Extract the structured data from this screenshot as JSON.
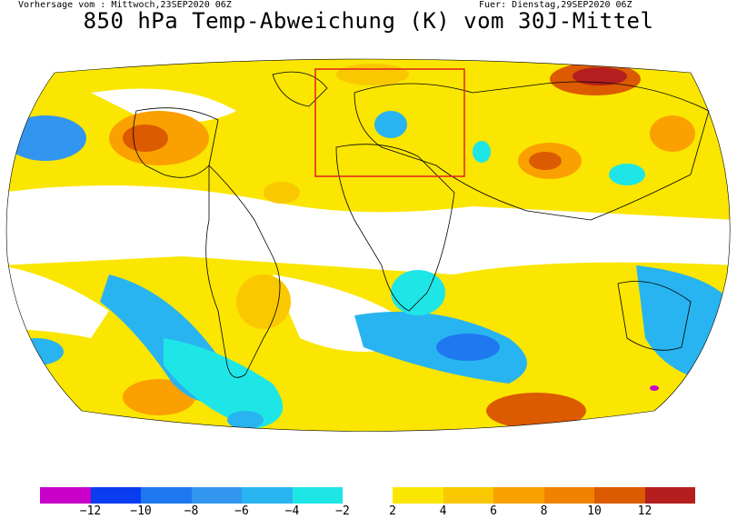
{
  "header": {
    "forecast_from": "Vorhersage vom : Mittwoch,23SEP2020 06Z",
    "forecast_for": "Fuer: Dienstag,29SEP2020 06Z",
    "title": "850 hPa Temp-Abweichung (K) vom 30J-Mittel"
  },
  "legend": {
    "negative_colors": [
      "#c800c8",
      "#0a3cf0",
      "#1e78f0",
      "#3296f0",
      "#28b4f0",
      "#1ee6e6"
    ],
    "positive_colors": [
      "#fae600",
      "#fac800",
      "#faa000",
      "#f08200",
      "#dc5a00",
      "#b41e1e"
    ],
    "negative_ticks": [
      "−12",
      "−10",
      "−8",
      "−6",
      "−4",
      "−2"
    ],
    "positive_ticks": [
      "2",
      "4",
      "6",
      "8",
      "10",
      "12"
    ]
  },
  "colors": {
    "ocean_outline": "#000000",
    "highlight_box": "#e02020"
  }
}
